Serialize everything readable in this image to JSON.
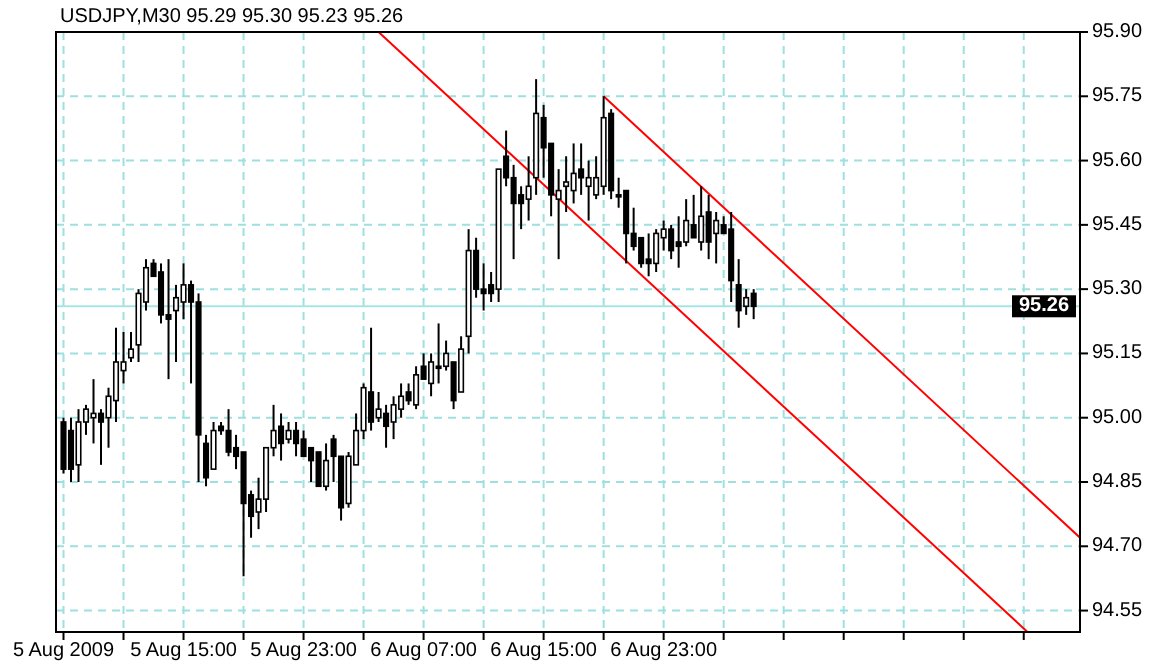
{
  "chart_data": {
    "type": "candlestick",
    "title": "USDJPY,M30  95.29 95.30 95.23 95.26",
    "x": [
      "2009-08-05T07:00",
      "2009-08-05T07:30",
      "2009-08-05T08:00",
      "2009-08-05T08:30",
      "2009-08-05T09:00",
      "2009-08-05T09:30",
      "2009-08-05T10:00",
      "2009-08-05T10:30",
      "2009-08-05T11:00",
      "2009-08-05T11:30",
      "2009-08-05T12:00",
      "2009-08-05T12:30",
      "2009-08-05T13:00",
      "2009-08-05T13:30",
      "2009-08-05T14:00",
      "2009-08-05T14:30",
      "2009-08-05T15:00",
      "2009-08-05T15:30",
      "2009-08-05T16:00",
      "2009-08-05T16:30",
      "2009-08-05T17:00",
      "2009-08-05T17:30",
      "2009-08-05T18:00",
      "2009-08-05T18:30",
      "2009-08-05T19:00",
      "2009-08-05T19:30",
      "2009-08-05T20:00",
      "2009-08-05T20:30",
      "2009-08-05T21:00",
      "2009-08-05T21:30",
      "2009-08-05T22:00",
      "2009-08-05T22:30",
      "2009-08-05T23:00",
      "2009-08-05T23:30",
      "2009-08-06T00:00",
      "2009-08-06T00:30",
      "2009-08-06T01:00",
      "2009-08-06T01:30",
      "2009-08-06T02:00",
      "2009-08-06T02:30",
      "2009-08-06T03:00",
      "2009-08-06T03:30",
      "2009-08-06T04:00",
      "2009-08-06T04:30",
      "2009-08-06T05:00",
      "2009-08-06T05:30",
      "2009-08-06T06:00",
      "2009-08-06T06:30",
      "2009-08-06T07:00",
      "2009-08-06T07:30",
      "2009-08-06T08:00",
      "2009-08-06T08:30",
      "2009-08-06T09:00",
      "2009-08-06T09:30",
      "2009-08-06T10:00",
      "2009-08-06T10:30",
      "2009-08-06T11:00",
      "2009-08-06T11:30",
      "2009-08-06T12:00",
      "2009-08-06T12:30",
      "2009-08-06T13:00",
      "2009-08-06T13:30",
      "2009-08-06T14:00",
      "2009-08-06T14:30",
      "2009-08-06T15:00",
      "2009-08-06T15:30",
      "2009-08-06T16:00",
      "2009-08-06T16:30",
      "2009-08-06T17:00",
      "2009-08-06T17:30",
      "2009-08-06T18:00",
      "2009-08-06T18:30",
      "2009-08-06T19:00",
      "2009-08-06T19:30",
      "2009-08-06T20:00",
      "2009-08-06T20:30",
      "2009-08-06T21:00",
      "2009-08-06T21:30",
      "2009-08-06T22:00",
      "2009-08-06T22:30",
      "2009-08-06T23:00",
      "2009-08-06T23:30",
      "2009-08-07T00:00",
      "2009-08-07T00:30",
      "2009-08-07T01:00",
      "2009-08-07T01:30",
      "2009-08-07T02:00",
      "2009-08-07T02:30",
      "2009-08-07T03:00",
      "2009-08-07T03:30",
      "2009-08-07T04:00",
      "2009-08-07T04:30",
      "2009-08-07T05:00"
    ],
    "ohlc": [
      [
        94.99,
        95.0,
        94.87,
        94.88
      ],
      [
        94.97,
        95.0,
        94.85,
        94.88
      ],
      [
        94.89,
        95.02,
        94.85,
        94.99
      ],
      [
        94.99,
        95.03,
        94.96,
        95.02
      ],
      [
        95.0,
        95.09,
        94.94,
        95.01
      ],
      [
        95.01,
        95.02,
        94.89,
        94.99
      ],
      [
        95.0,
        95.07,
        94.93,
        95.05
      ],
      [
        95.04,
        95.21,
        94.99,
        95.13
      ],
      [
        95.11,
        95.2,
        95.08,
        95.13
      ],
      [
        95.14,
        95.2,
        95.13,
        95.16
      ],
      [
        95.17,
        95.3,
        95.13,
        95.29
      ],
      [
        95.27,
        95.37,
        95.25,
        95.35
      ],
      [
        95.36,
        95.37,
        95.33,
        95.33
      ],
      [
        95.34,
        95.36,
        95.22,
        95.24
      ],
      [
        95.24,
        95.37,
        95.09,
        95.23
      ],
      [
        95.25,
        95.31,
        95.13,
        95.28
      ],
      [
        95.27,
        95.36,
        95.23,
        95.31
      ],
      [
        95.31,
        95.32,
        95.08,
        95.27
      ],
      [
        95.27,
        95.29,
        94.85,
        94.96
      ],
      [
        94.94,
        94.96,
        94.84,
        94.86
      ],
      [
        94.88,
        94.99,
        94.88,
        94.97
      ],
      [
        94.98,
        94.99,
        94.96,
        94.97
      ],
      [
        94.97,
        95.02,
        94.91,
        94.92
      ],
      [
        94.93,
        94.96,
        94.88,
        94.91
      ],
      [
        94.92,
        94.92,
        94.63,
        94.8
      ],
      [
        94.82,
        94.83,
        94.72,
        94.77
      ],
      [
        94.78,
        94.86,
        94.74,
        94.81
      ],
      [
        94.81,
        94.93,
        94.78,
        94.93
      ],
      [
        94.93,
        95.03,
        94.91,
        94.97
      ],
      [
        94.98,
        95.01,
        94.9,
        94.94
      ],
      [
        94.95,
        94.99,
        94.94,
        94.97
      ],
      [
        94.97,
        94.99,
        94.91,
        94.94
      ],
      [
        94.95,
        94.97,
        94.91,
        94.91
      ],
      [
        94.93,
        94.93,
        94.85,
        94.9
      ],
      [
        94.92,
        94.92,
        94.84,
        94.84
      ],
      [
        94.84,
        94.94,
        94.83,
        94.9
      ],
      [
        94.95,
        94.96,
        94.85,
        94.91
      ],
      [
        94.91,
        94.91,
        94.76,
        94.79
      ],
      [
        94.8,
        94.92,
        94.79,
        94.91
      ],
      [
        94.89,
        95.01,
        94.89,
        94.97
      ],
      [
        94.97,
        95.08,
        94.95,
        95.07
      ],
      [
        95.06,
        95.21,
        94.97,
        94.99
      ],
      [
        95.0,
        95.06,
        94.99,
        95.02
      ],
      [
        95.01,
        95.03,
        94.93,
        94.98
      ],
      [
        94.99,
        95.05,
        94.95,
        95.03
      ],
      [
        95.02,
        95.08,
        95.0,
        95.05
      ],
      [
        95.06,
        95.08,
        95.03,
        95.04
      ],
      [
        95.03,
        95.12,
        95.02,
        95.1
      ],
      [
        95.12,
        95.15,
        95.09,
        95.09
      ],
      [
        95.08,
        95.15,
        95.05,
        95.13
      ],
      [
        95.12,
        95.22,
        95.08,
        95.12
      ],
      [
        95.12,
        95.18,
        95.11,
        95.15
      ],
      [
        95.13,
        95.13,
        95.02,
        95.04
      ],
      [
        95.06,
        95.19,
        95.06,
        95.16
      ],
      [
        95.19,
        95.44,
        95.15,
        95.39
      ],
      [
        95.39,
        95.42,
        95.28,
        95.3
      ],
      [
        95.3,
        95.36,
        95.25,
        95.29
      ],
      [
        95.31,
        95.34,
        95.27,
        95.29
      ],
      [
        95.3,
        95.58,
        95.27,
        95.58
      ],
      [
        95.61,
        95.67,
        95.54,
        95.56
      ],
      [
        95.56,
        95.59,
        95.37,
        95.5
      ],
      [
        95.52,
        95.54,
        95.44,
        95.5
      ],
      [
        95.51,
        95.61,
        95.46,
        95.54
      ],
      [
        95.56,
        95.79,
        95.52,
        95.71
      ],
      [
        95.7,
        95.73,
        95.56,
        95.63
      ],
      [
        95.64,
        95.64,
        95.47,
        95.52
      ],
      [
        95.51,
        95.58,
        95.37,
        95.53
      ],
      [
        95.54,
        95.61,
        95.48,
        95.55
      ],
      [
        95.53,
        95.64,
        95.5,
        95.57
      ],
      [
        95.58,
        95.64,
        95.52,
        95.56
      ],
      [
        95.54,
        95.6,
        95.46,
        95.56
      ],
      [
        95.52,
        95.61,
        95.51,
        95.56
      ],
      [
        95.54,
        95.75,
        95.52,
        95.7
      ],
      [
        95.71,
        95.72,
        95.51,
        95.53
      ],
      [
        95.52,
        95.56,
        95.49,
        95.52
      ],
      [
        95.53,
        95.53,
        95.36,
        95.43
      ],
      [
        95.43,
        95.49,
        95.39,
        95.4
      ],
      [
        95.42,
        95.42,
        95.35,
        95.36
      ],
      [
        95.37,
        95.43,
        95.33,
        95.36
      ],
      [
        95.36,
        95.44,
        95.34,
        95.43
      ],
      [
        95.42,
        95.46,
        95.39,
        95.44
      ],
      [
        95.44,
        95.45,
        95.37,
        95.39
      ],
      [
        95.41,
        95.47,
        95.35,
        95.4
      ],
      [
        95.41,
        95.51,
        95.4,
        95.46
      ],
      [
        95.45,
        95.52,
        95.42,
        95.42
      ],
      [
        95.41,
        95.54,
        95.39,
        95.47
      ],
      [
        95.48,
        95.52,
        95.37,
        95.41
      ],
      [
        95.43,
        95.48,
        95.36,
        95.46
      ],
      [
        95.45,
        95.47,
        95.43,
        95.43
      ],
      [
        95.44,
        95.48,
        95.27,
        95.32
      ],
      [
        95.31,
        95.37,
        95.21,
        95.25
      ],
      [
        95.26,
        95.3,
        95.24,
        95.28
      ],
      [
        95.29,
        95.3,
        95.23,
        95.26
      ]
    ],
    "series": [
      {
        "type": "line",
        "color": "#ff0000",
        "x": [
          "2009-08-06T19:00",
          "2009-08-08T02:45"
        ],
        "values": [
          95.75,
          94.72
        ]
      },
      {
        "type": "line",
        "color": "#ff0000",
        "x": [
          "2009-08-06T04:00",
          "2009-08-07T23:15"
        ],
        "values": [
          95.9,
          94.5
        ]
      }
    ],
    "xlim": [
      "2009-08-05T06:30",
      "2009-08-08T02:45"
    ],
    "xticks": [
      {
        "value": "2009-08-05T07:00",
        "label": "5 Aug 2009"
      },
      {
        "value": "2009-08-05T11:00",
        "label": null
      },
      {
        "value": "2009-08-05T15:00",
        "label": "5 Aug 15:00"
      },
      {
        "value": "2009-08-05T19:00",
        "label": null
      },
      {
        "value": "2009-08-05T23:00",
        "label": "5 Aug 23:00"
      },
      {
        "value": "2009-08-06T03:00",
        "label": null
      },
      {
        "value": "2009-08-06T07:00",
        "label": "6 Aug 07:00"
      },
      {
        "value": "2009-08-06T11:00",
        "label": null
      },
      {
        "value": "2009-08-06T15:00",
        "label": "6 Aug 15:00"
      },
      {
        "value": "2009-08-06T19:00",
        "label": null
      },
      {
        "value": "2009-08-06T23:00",
        "label": "6 Aug 23:00"
      },
      {
        "value": "2009-08-07T03:00",
        "label": null
      },
      {
        "value": "2009-08-07T07:00",
        "label": null
      },
      {
        "value": "2009-08-07T11:00",
        "label": null
      },
      {
        "value": "2009-08-07T15:00",
        "label": null
      },
      {
        "value": "2009-08-07T19:00",
        "label": null
      },
      {
        "value": "2009-08-07T23:00",
        "label": null
      }
    ],
    "ylim": [
      94.5,
      95.9
    ],
    "yticks": [
      {
        "value": 94.55,
        "label": "94.55"
      },
      {
        "value": 94.7,
        "label": "94.70"
      },
      {
        "value": 94.85,
        "label": "94.85"
      },
      {
        "value": 95.0,
        "label": "95.00"
      },
      {
        "value": 95.15,
        "label": "95.15"
      },
      {
        "value": 95.3,
        "label": "95.30"
      },
      {
        "value": 95.45,
        "label": "95.45"
      },
      {
        "value": 95.6,
        "label": "95.60"
      },
      {
        "value": 95.75,
        "label": "95.75"
      },
      {
        "value": 95.9,
        "label": "95.90"
      }
    ],
    "ref_lines": [
      {
        "axis": "y",
        "value": 95.26,
        "label": "95.26",
        "color": "#a8e4e4"
      }
    ],
    "grid": true
  }
}
